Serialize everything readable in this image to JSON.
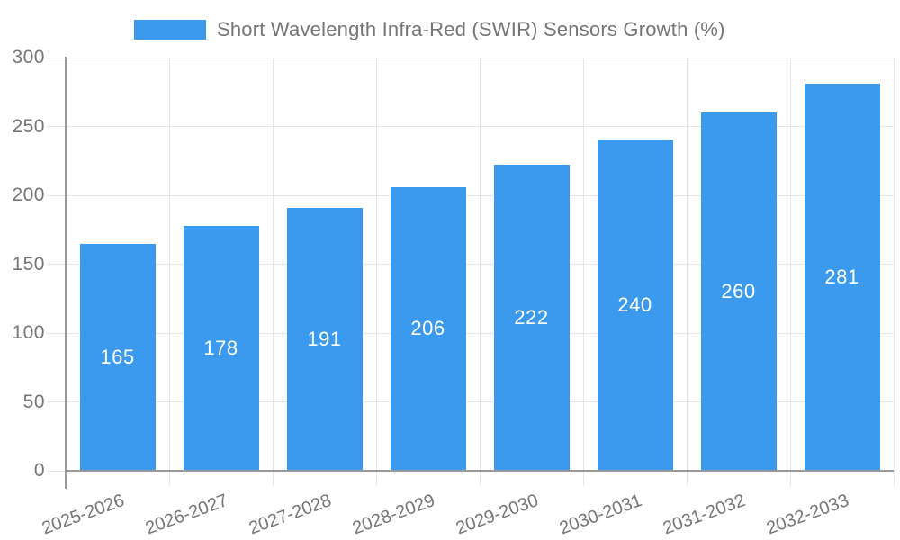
{
  "chart_data": {
    "type": "bar",
    "title": "Short Wavelength Infra-Red (SWIR) Sensors Growth (%)",
    "legend": {
      "position": "top",
      "entries": [
        "Short Wavelength Infra-Red (SWIR) Sensors Growth (%)"
      ]
    },
    "categories": [
      "2025-2026",
      "2026-2027",
      "2027-2028",
      "2028-2029",
      "2029-2030",
      "2030-2031",
      "2031-2032",
      "2032-2033"
    ],
    "values": [
      165,
      178,
      191,
      206,
      222,
      240,
      260,
      281
    ],
    "xlabel": "",
    "ylabel": "",
    "ylim": [
      0,
      300
    ],
    "yticks": [
      0,
      50,
      100,
      150,
      200,
      250,
      300
    ],
    "grid": true,
    "bar_value_labels_shown": true,
    "colors": {
      "bar": "#3C9AEE",
      "bar_value_label": "#FFFFFF",
      "axis_text": "#757575",
      "axis_line": "#999999",
      "gridline": "#E6E6E6"
    }
  }
}
